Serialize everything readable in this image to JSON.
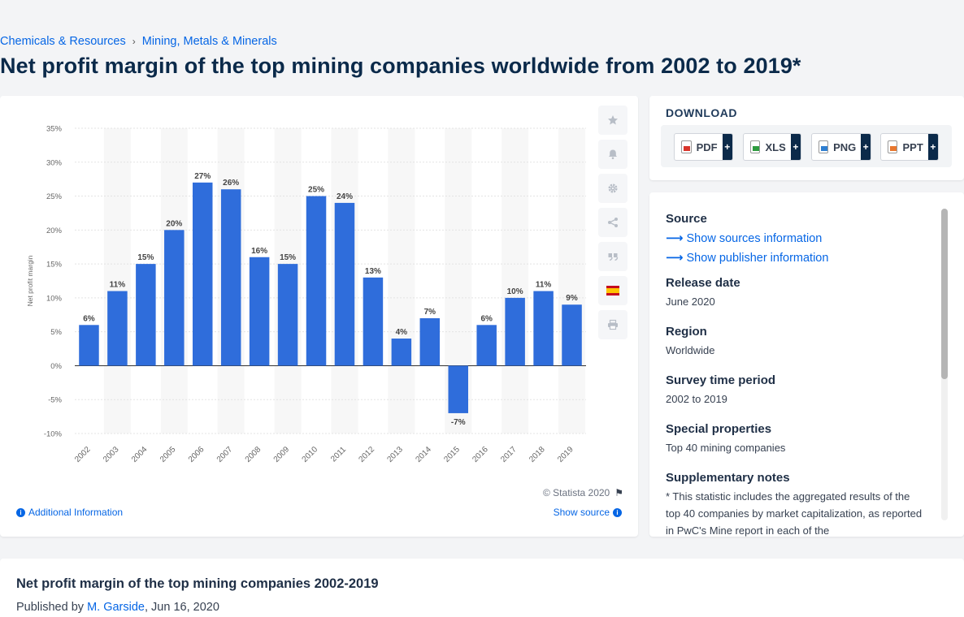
{
  "breadcrumb": [
    {
      "label": "Chemicals & Resources"
    },
    {
      "label": "Mining, Metals & Minerals"
    }
  ],
  "page_title": "Net profit margin of the top mining companies worldwide from 2002 to 2019*",
  "chart_data": {
    "type": "bar",
    "categories": [
      "2002",
      "2003",
      "2004",
      "2005",
      "2006",
      "2007",
      "2008",
      "2009",
      "2010",
      "2011",
      "2012",
      "2013",
      "2014",
      "2015",
      "2016",
      "2017",
      "2018",
      "2019"
    ],
    "values": [
      6,
      11,
      15,
      20,
      27,
      26,
      16,
      15,
      25,
      24,
      13,
      4,
      7,
      -7,
      6,
      10,
      11,
      9
    ],
    "data_labels": [
      "6%",
      "11%",
      "15%",
      "20%",
      "27%",
      "26%",
      "16%",
      "15%",
      "25%",
      "24%",
      "13%",
      "4%",
      "7%",
      "-7%",
      "6%",
      "10%",
      "11%",
      "9%"
    ],
    "ylabel": "Net profit margin",
    "ylim": [
      -10,
      35
    ],
    "y_ticks": [
      35,
      30,
      25,
      20,
      15,
      10,
      5,
      0,
      -5,
      -10
    ],
    "y_tick_labels": [
      "35%",
      "30%",
      "25%",
      "20%",
      "15%",
      "10%",
      "5%",
      "0%",
      "-5%",
      "-10%"
    ],
    "bar_color": "#2f6ddb",
    "grid": true,
    "legend": "none"
  },
  "chart_footer": {
    "credit": "© Statista 2020",
    "additional_info": "Additional Information",
    "show_source": "Show source"
  },
  "toolbar_icons": [
    "star-icon",
    "bell-icon",
    "gear-icon",
    "share-icon",
    "quote-icon",
    "spain-flag-icon",
    "print-icon"
  ],
  "download": {
    "heading": "DOWNLOAD",
    "buttons": [
      {
        "label": "PDF",
        "plus": "+"
      },
      {
        "label": "XLS",
        "plus": "+"
      },
      {
        "label": "PNG",
        "plus": "+"
      },
      {
        "label": "PPT",
        "plus": "+"
      }
    ]
  },
  "info": {
    "source_label": "Source",
    "show_sources": "Show sources information",
    "show_publisher": "Show publisher information",
    "release_label": "Release date",
    "release_value": "June 2020",
    "region_label": "Region",
    "region_value": "Worldwide",
    "survey_label": "Survey time period",
    "survey_value": "2002 to 2019",
    "special_label": "Special properties",
    "special_value": "Top 40 mining companies",
    "notes_label": "Supplementary notes",
    "notes_value": "* This statistic includes the aggregated results of the top 40 companies by market capitalization, as reported in PwC's Mine report in each of the"
  },
  "bottom": {
    "title": "Net profit margin of the top mining companies 2002-2019",
    "published_by": "Published by",
    "author": "M. Garside",
    "date": ", Jun 16, 2020"
  },
  "colors": {
    "accent": "#0666e5",
    "title": "#0b2a4a"
  }
}
